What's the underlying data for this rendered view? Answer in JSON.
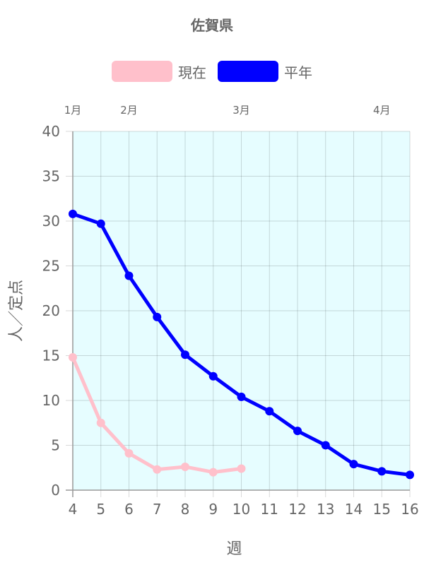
{
  "title": "佐賀県",
  "legend": [
    {
      "name": "現在",
      "color": "#ffc0cb"
    },
    {
      "name": "平年",
      "color": "#0000ff"
    }
  ],
  "chart_data": {
    "type": "line",
    "xlabel": "週",
    "ylabel": "人／定点",
    "x": [
      4,
      5,
      6,
      7,
      8,
      9,
      10,
      11,
      12,
      13,
      14,
      15,
      16
    ],
    "xlim": [
      4,
      16
    ],
    "ylim": [
      0,
      40
    ],
    "yticks": [
      0,
      5,
      10,
      15,
      20,
      25,
      30,
      35,
      40
    ],
    "grid": true,
    "legend_position": "top-center",
    "plot_background": "#e6fdff",
    "month_labels": [
      {
        "label": "1月",
        "week": 4
      },
      {
        "label": "2月",
        "week": 6
      },
      {
        "label": "3月",
        "week": 10
      },
      {
        "label": "4月",
        "week": 15
      }
    ],
    "series": [
      {
        "name": "現在",
        "color": "#ffc0cb",
        "x": [
          4,
          5,
          6,
          7,
          8,
          9,
          10
        ],
        "values": [
          14.8,
          7.5,
          4.1,
          2.3,
          2.6,
          2.0,
          2.4
        ]
      },
      {
        "name": "平年",
        "color": "#0000ff",
        "x": [
          4,
          5,
          6,
          7,
          8,
          9,
          10,
          11,
          12,
          13,
          14,
          15,
          16
        ],
        "values": [
          30.8,
          29.7,
          23.9,
          19.3,
          15.1,
          12.7,
          10.4,
          8.8,
          6.6,
          5.0,
          2.9,
          2.1,
          1.7
        ]
      }
    ]
  }
}
